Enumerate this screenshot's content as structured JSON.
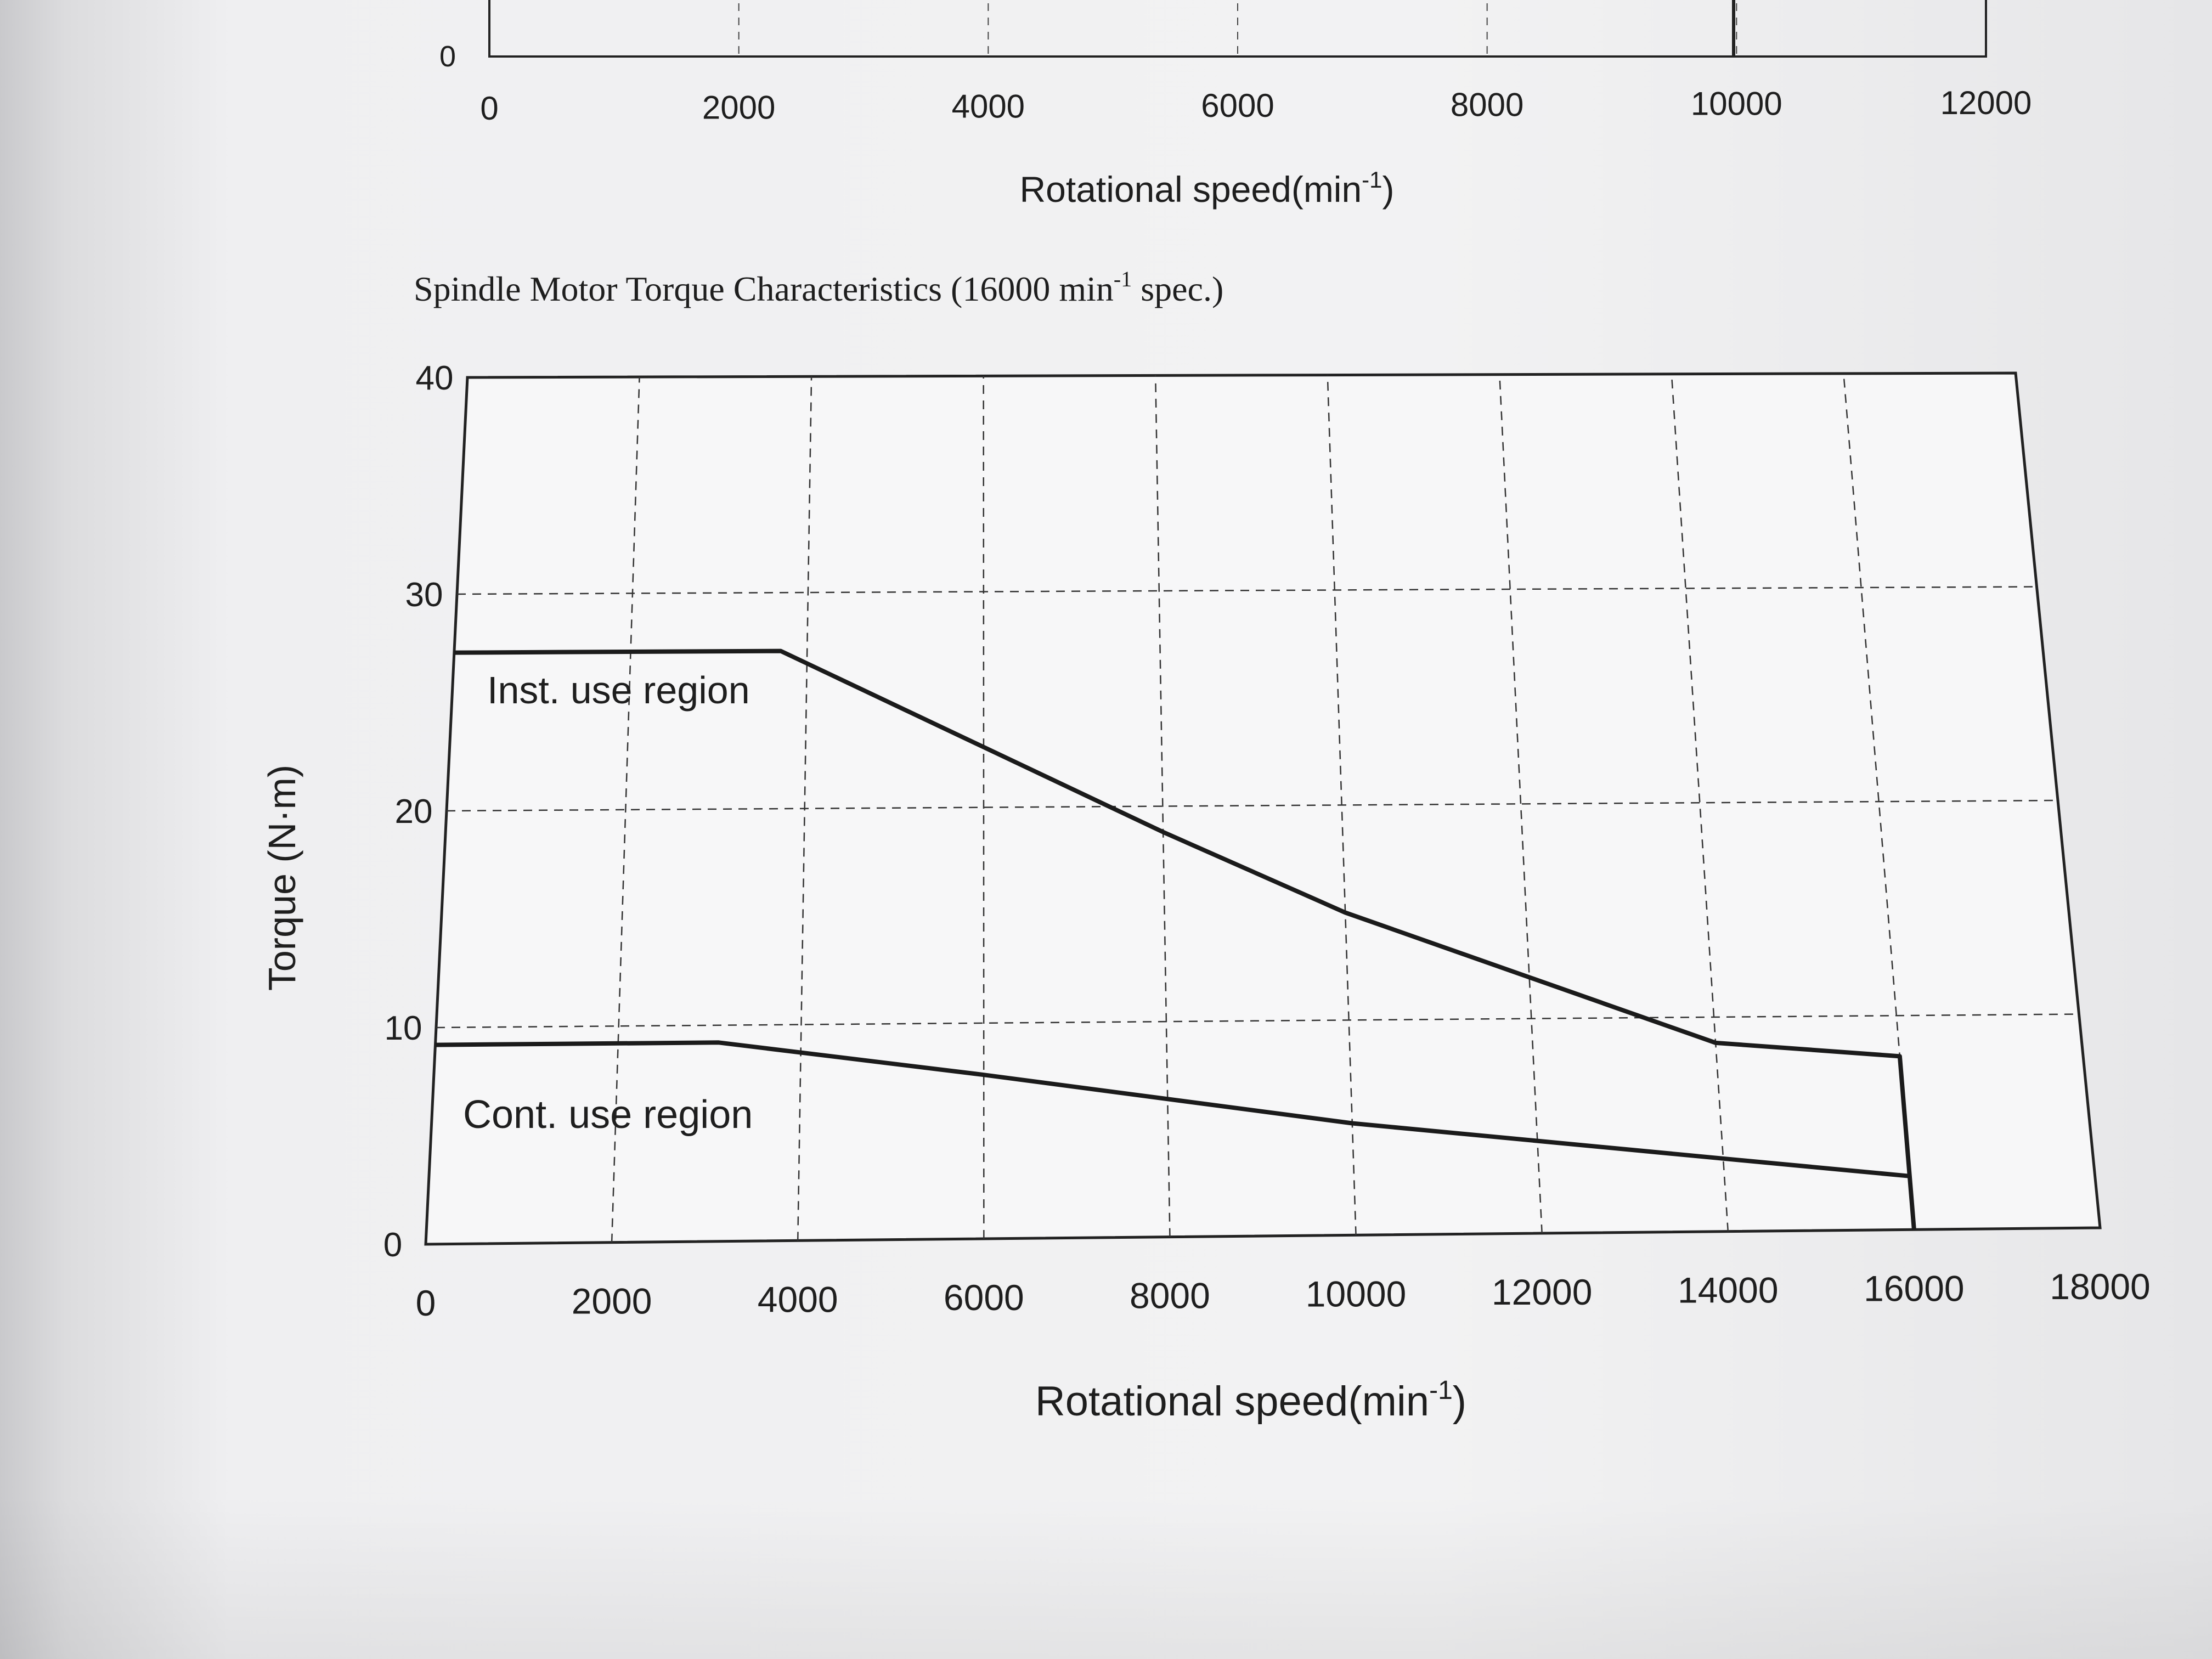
{
  "top_chart": {
    "xlabel_main": "Rotational speed(min",
    "xlabel_sup": "-1",
    "xlabel_end": ")",
    "y_tick_visible": "0",
    "x_ticks": [
      "0",
      "2000",
      "4000",
      "6000",
      "8000",
      "10000",
      "12000"
    ],
    "xlim": [
      0,
      12000
    ],
    "grid": "dashed"
  },
  "chart_data": {
    "type": "line",
    "title_main": "Spindle Motor Torque Characteristics (16000 min",
    "title_sup": "-1",
    "title_end": " spec.)",
    "xlabel_main": "Rotational speed(min",
    "xlabel_sup": "-1",
    "xlabel_end": ")",
    "ylabel": "Torque (N·m)",
    "xlim": [
      0,
      18000
    ],
    "ylim": [
      0,
      40
    ],
    "x_ticks": [
      "0",
      "2000",
      "4000",
      "6000",
      "8000",
      "10000",
      "12000",
      "14000",
      "16000",
      "18000"
    ],
    "y_ticks": [
      "0",
      "10",
      "20",
      "30",
      "40"
    ],
    "grid": "dashed",
    "series": [
      {
        "name": "Inst. use region",
        "x": [
          0,
          3700,
          8000,
          10000,
          14000,
          16000,
          16000
        ],
        "y": [
          27.3,
          27.3,
          18.8,
          15.0,
          8.8,
          8.1,
          0
        ]
      },
      {
        "name": "Cont. use region",
        "x": [
          0,
          3100,
          6000,
          10000,
          14000,
          16000
        ],
        "y": [
          9.2,
          9.2,
          7.6,
          5.2,
          3.4,
          2.5
        ]
      }
    ]
  }
}
